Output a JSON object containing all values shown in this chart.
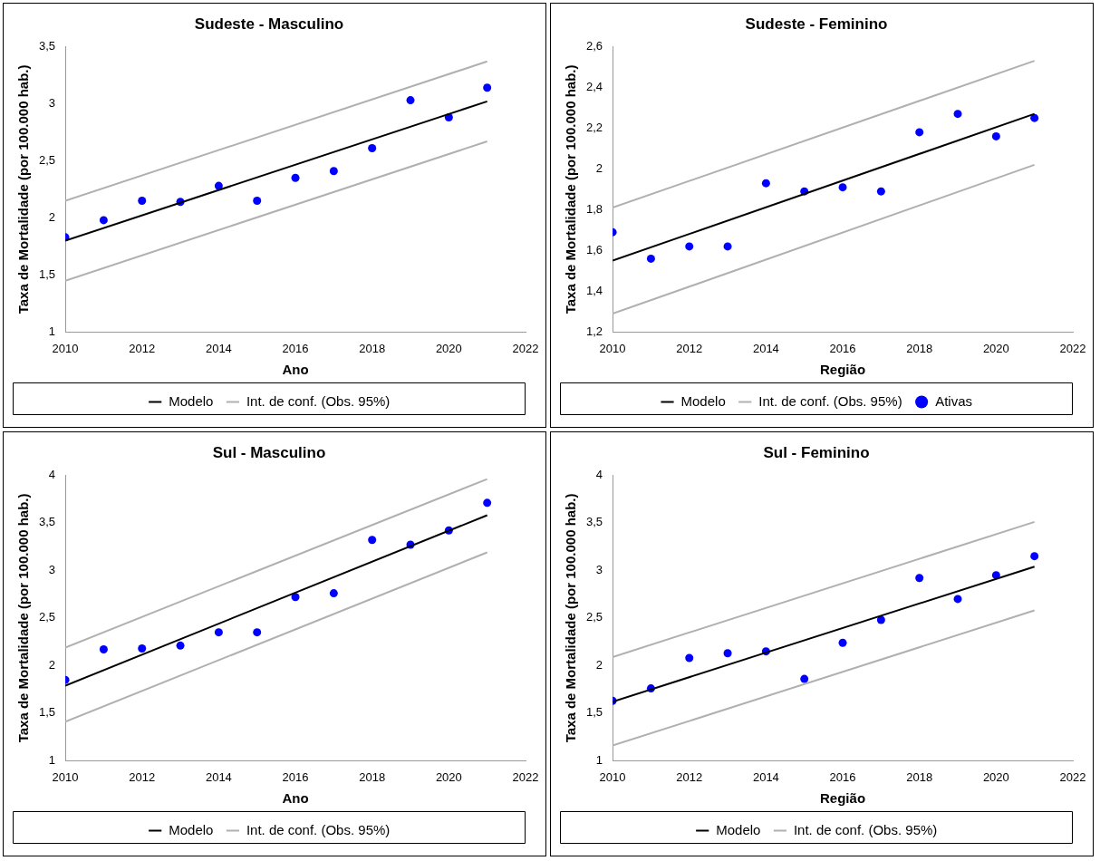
{
  "chart_data": [
    {
      "type": "line",
      "title": "Sudeste - Masculino",
      "xlabel": "Ano",
      "ylabel": "Taxa de Mortalidade (por 100.000 hab.)",
      "xlim": [
        2010,
        2022
      ],
      "xticks": [
        2010,
        2012,
        2014,
        2016,
        2018,
        2020,
        2022
      ],
      "ylim": [
        1,
        3.5
      ],
      "yticks": [
        1,
        {
          "value": 1.5,
          "label": "1,5"
        },
        2,
        {
          "value": 2.5,
          "label": "2,5"
        },
        3,
        {
          "value": 3.5,
          "label": "3,5"
        }
      ],
      "grid": false,
      "legend": "bottom",
      "series": [
        {
          "type": "scatter",
          "marker": "circle",
          "color": "#0000ff",
          "x": [
            2010,
            2011,
            2012,
            2013,
            2014,
            2015,
            2016,
            2017,
            2018,
            2019,
            2020,
            2021
          ],
          "values": [
            1.83,
            1.98,
            2.15,
            2.14,
            2.28,
            2.15,
            2.35,
            2.41,
            2.61,
            3.03,
            2.88,
            3.14
          ]
        },
        {
          "type": "line",
          "marker": "none",
          "name": "Modelo",
          "color": "#000000",
          "x": [
            2010,
            2021
          ],
          "values": [
            1.8,
            3.02
          ]
        },
        {
          "type": "line",
          "marker": "none",
          "name": "Int. de conf. (Obs. 95%)",
          "color": "#b0b0b0",
          "x": [
            2010,
            2021
          ],
          "values": [
            2.15,
            3.37
          ]
        },
        {
          "type": "line",
          "marker": "none",
          "color": "#b0b0b0",
          "x": [
            2010,
            2021
          ],
          "values": [
            1.45,
            2.67
          ]
        }
      ]
    },
    {
      "type": "line",
      "title": "Sudeste - Feminino",
      "xlabel": "Região",
      "ylabel": "Taxa de Mortalidade (por 100.000 hab.)",
      "xlim": [
        2010,
        2022
      ],
      "xticks": [
        2010,
        2012,
        2014,
        2016,
        2018,
        2020,
        2022
      ],
      "ylim": [
        1.2,
        2.6
      ],
      "yticks": [
        {
          "value": 1.2,
          "label": "1,2"
        },
        {
          "value": 1.4,
          "label": "1,4"
        },
        {
          "value": 1.6,
          "label": "1,6"
        },
        {
          "value": 1.8,
          "label": "1,8"
        },
        2,
        {
          "value": 2.2,
          "label": "2,2"
        },
        {
          "value": 2.4,
          "label": "2,4"
        },
        {
          "value": 2.6,
          "label": "2,6"
        }
      ],
      "grid": false,
      "legend": "bottom",
      "series": [
        {
          "type": "scatter",
          "marker": "circle",
          "name": "Ativas",
          "color": "#0000ff",
          "x": [
            2010,
            2011,
            2012,
            2013,
            2014,
            2015,
            2016,
            2017,
            2018,
            2019,
            2020,
            2021
          ],
          "values": [
            1.69,
            1.56,
            1.62,
            1.62,
            1.93,
            1.89,
            1.91,
            1.89,
            2.18,
            2.27,
            2.16,
            2.25
          ]
        },
        {
          "type": "line",
          "marker": "none",
          "name": "Modelo",
          "color": "#000000",
          "x": [
            2010,
            2021
          ],
          "values": [
            1.55,
            2.27
          ]
        },
        {
          "type": "line",
          "marker": "none",
          "name": "Int. de conf. (Obs. 95%)",
          "color": "#b0b0b0",
          "x": [
            2010,
            2021
          ],
          "values": [
            1.81,
            2.53
          ]
        },
        {
          "type": "line",
          "marker": "none",
          "color": "#b0b0b0",
          "x": [
            2010,
            2021
          ],
          "values": [
            1.29,
            2.02
          ]
        }
      ]
    },
    {
      "type": "line",
      "title": "Sul - Masculino",
      "xlabel": "Ano",
      "ylabel": "Taxa de Mortalidade (por 100.000 hab.)",
      "xlim": [
        2010,
        2022
      ],
      "xticks": [
        2010,
        2012,
        2014,
        2016,
        2018,
        2020,
        2022
      ],
      "ylim": [
        1,
        4
      ],
      "yticks": [
        1,
        {
          "value": 1.5,
          "label": "1,5"
        },
        2,
        {
          "value": 2.5,
          "label": "2,5"
        },
        3,
        {
          "value": 3.5,
          "label": "3,5"
        },
        4
      ],
      "grid": false,
      "legend": "bottom",
      "series": [
        {
          "type": "scatter",
          "marker": "circle",
          "color": "#0000ff",
          "x": [
            2010,
            2011,
            2012,
            2013,
            2014,
            2015,
            2016,
            2017,
            2018,
            2019,
            2020,
            2021
          ],
          "values": [
            1.85,
            2.17,
            2.18,
            2.21,
            2.35,
            2.35,
            2.72,
            2.76,
            3.32,
            3.27,
            3.42,
            3.71
          ]
        },
        {
          "type": "line",
          "marker": "none",
          "name": "Modelo",
          "color": "#000000",
          "x": [
            2010,
            2021
          ],
          "values": [
            1.79,
            3.58
          ]
        },
        {
          "type": "line",
          "marker": "none",
          "name": "Int. de conf. (Obs. 95%)",
          "color": "#b0b0b0",
          "x": [
            2010,
            2021
          ],
          "values": [
            2.19,
            3.96
          ]
        },
        {
          "type": "line",
          "marker": "none",
          "color": "#b0b0b0",
          "x": [
            2010,
            2021
          ],
          "values": [
            1.41,
            3.19
          ]
        }
      ]
    },
    {
      "type": "line",
      "title": "Sul - Feminino",
      "xlabel": "Região",
      "ylabel": "Taxa de Mortalidade (por 100.000 hab.)",
      "xlim": [
        2010,
        2022
      ],
      "xticks": [
        2010,
        2012,
        2014,
        2016,
        2018,
        2020,
        2022
      ],
      "ylim": [
        1,
        4
      ],
      "yticks": [
        1,
        {
          "value": 1.5,
          "label": "1,5"
        },
        2,
        {
          "value": 2.5,
          "label": "2,5"
        },
        3,
        {
          "value": 3.5,
          "label": "3,5"
        },
        4
      ],
      "grid": false,
      "legend": "bottom",
      "series": [
        {
          "type": "scatter",
          "marker": "circle",
          "color": "#0000ff",
          "x": [
            2010,
            2011,
            2012,
            2013,
            2014,
            2015,
            2016,
            2017,
            2018,
            2019,
            2020,
            2021
          ],
          "values": [
            1.63,
            1.76,
            2.08,
            2.13,
            2.15,
            1.86,
            2.24,
            2.48,
            2.92,
            2.7,
            2.95,
            3.15
          ]
        },
        {
          "type": "line",
          "marker": "none",
          "name": "Modelo",
          "color": "#000000",
          "x": [
            2010,
            2021
          ],
          "values": [
            1.62,
            3.04
          ]
        },
        {
          "type": "line",
          "marker": "none",
          "name": "Int. de conf. (Obs. 95%)",
          "color": "#b0b0b0",
          "x": [
            2010,
            2021
          ],
          "values": [
            2.09,
            3.51
          ]
        },
        {
          "type": "line",
          "marker": "none",
          "color": "#b0b0b0",
          "x": [
            2010,
            2021
          ],
          "values": [
            1.16,
            2.58
          ]
        }
      ]
    }
  ]
}
